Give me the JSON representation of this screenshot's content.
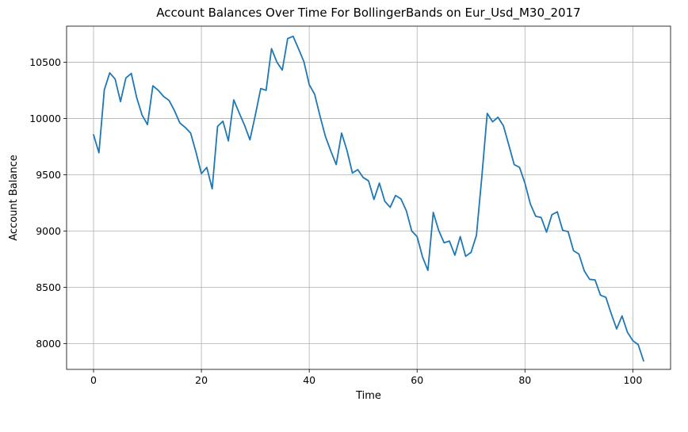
{
  "chart_data": {
    "type": "line",
    "title": "Account Balances Over Time For BollingerBands on Eur_Usd_M30_2017",
    "xlabel": "Time",
    "ylabel": "Account Balance",
    "xlim": [
      -5,
      107
    ],
    "ylim": [
      7770,
      10820
    ],
    "xticks": [
      0,
      20,
      40,
      60,
      80,
      100
    ],
    "yticks": [
      8000,
      8500,
      9000,
      9500,
      10000,
      10500
    ],
    "grid": true,
    "line_color": "#1f77b4",
    "series": [
      {
        "x": [
          0,
          1,
          2,
          3,
          4,
          5,
          6,
          7,
          8,
          9,
          10,
          11,
          12,
          13,
          14,
          15,
          16,
          17,
          18,
          19,
          20,
          21,
          22,
          23,
          24,
          25,
          26,
          27,
          28,
          29,
          30,
          31,
          32,
          33,
          34,
          35,
          36,
          37,
          38,
          39,
          40,
          41,
          42,
          43,
          44,
          45,
          46,
          47,
          48,
          49,
          50,
          51,
          52,
          53,
          54,
          55,
          56,
          57,
          58,
          59,
          60,
          61,
          62,
          63,
          64,
          65,
          66,
          67,
          68,
          69,
          70,
          71,
          72,
          73,
          74,
          75,
          76,
          77,
          78,
          79,
          80,
          81,
          82,
          83,
          84,
          85,
          86,
          87,
          88,
          89,
          90,
          91,
          92,
          93,
          94,
          95,
          96,
          97,
          98,
          99,
          100,
          101,
          102
        ],
        "values": [
          9855,
          9695,
          10255,
          10405,
          10350,
          10150,
          10360,
          10400,
          10185,
          10030,
          9945,
          10290,
          10250,
          10195,
          10160,
          10070,
          9960,
          9920,
          9870,
          9700,
          9510,
          9565,
          9375,
          9930,
          9975,
          9800,
          10165,
          10050,
          9940,
          9810,
          10030,
          10265,
          10250,
          10620,
          10500,
          10430,
          10710,
          10730,
          10620,
          10505,
          10300,
          10215,
          10020,
          9840,
          9710,
          9590,
          9870,
          9715,
          9515,
          9545,
          9475,
          9445,
          9280,
          9425,
          9265,
          9210,
          9315,
          9285,
          9180,
          9000,
          8950,
          8770,
          8650,
          9165,
          9005,
          8895,
          8910,
          8785,
          8950,
          8775,
          8810,
          8960,
          9480,
          10045,
          9970,
          10010,
          9935,
          9765,
          9590,
          9565,
          9425,
          9240,
          9130,
          9120,
          8990,
          9145,
          9170,
          9005,
          8995,
          8825,
          8795,
          8645,
          8570,
          8565,
          8430,
          8410,
          8265,
          8130,
          8245,
          8100,
          8025,
          7990,
          7845
        ]
      }
    ]
  }
}
